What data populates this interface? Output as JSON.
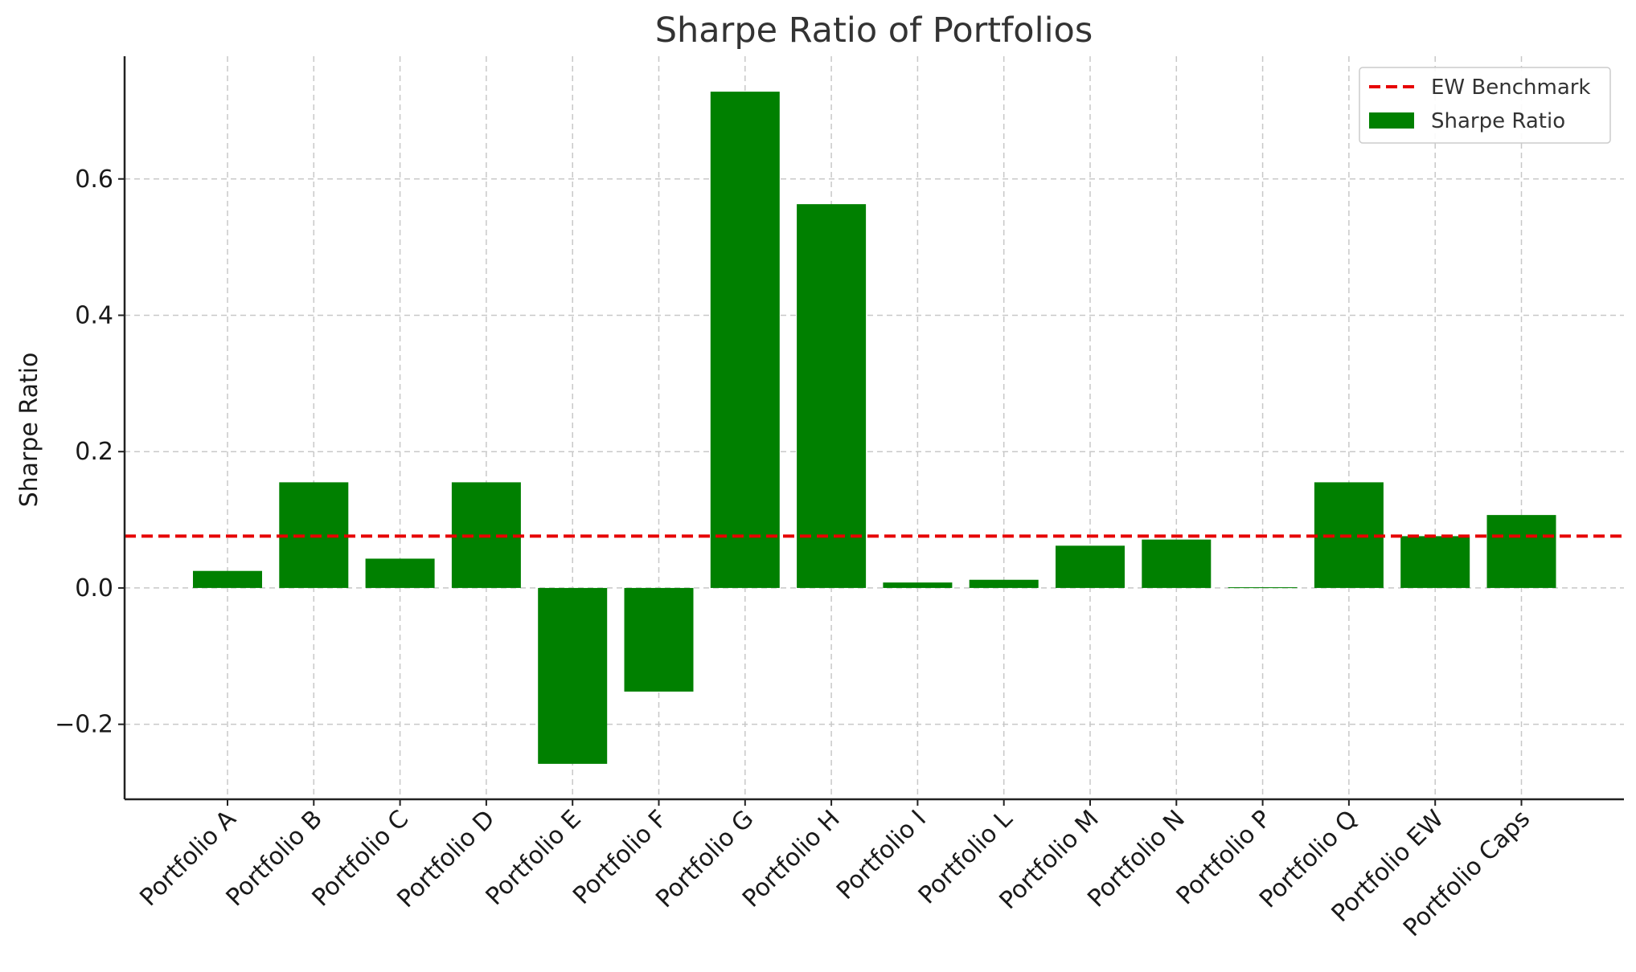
{
  "chart_data": {
    "type": "bar",
    "title": "Sharpe Ratio of Portfolios",
    "xlabel": "",
    "ylabel": "Sharpe Ratio",
    "categories": [
      "Portfolio A",
      "Portfolio B",
      "Portfolio C",
      "Portfolio D",
      "Portfolio E",
      "Portfolio F",
      "Portfolio G",
      "Portfolio H",
      "Portfolio I",
      "Portfolio L",
      "Portfolio M",
      "Portfolio N",
      "Portfolio P",
      "Portfolio Q",
      "Portfolio EW",
      "Portfolio Caps"
    ],
    "series": [
      {
        "name": "Sharpe Ratio",
        "color": "#008000",
        "values": [
          0.025,
          0.155,
          0.043,
          0.155,
          -0.258,
          -0.152,
          0.728,
          0.563,
          0.008,
          0.012,
          0.062,
          0.071,
          0.001,
          0.155,
          0.076,
          0.107
        ]
      }
    ],
    "benchmark": {
      "name": "EW Benchmark",
      "value": 0.076,
      "color": "#e60000",
      "style": "dashed"
    },
    "ylim": [
      -0.31,
      0.78
    ],
    "yticks": [
      -0.2,
      0.0,
      0.2,
      0.4,
      0.6
    ],
    "ytick_labels": [
      "−0.2",
      "0.0",
      "0.2",
      "0.4",
      "0.6"
    ],
    "grid": true,
    "legend_position": "top-right"
  }
}
